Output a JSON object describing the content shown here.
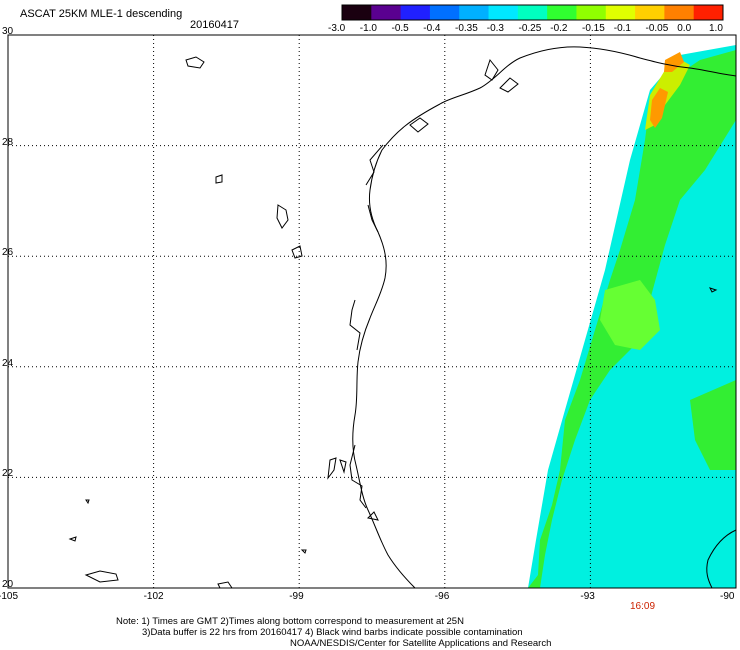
{
  "header": {
    "title": "ASCAT 25KM MLE-1 descending",
    "date": "20160417"
  },
  "colorbar": {
    "labels": [
      "-3.0",
      "-1.0",
      "-0.5",
      "-0.4",
      "-0.35",
      "-0.3",
      "-0.25",
      "-0.2",
      "-0.15",
      "-0.1",
      "-0.05",
      "0.0",
      "1.0"
    ],
    "colors": [
      "#1a0010",
      "#5a0090",
      "#2020ff",
      "#0070ff",
      "#00b0ff",
      "#00e8ff",
      "#00ffc0",
      "#30ff30",
      "#90ff00",
      "#e0ff00",
      "#ffd000",
      "#ff8000",
      "#ff2000"
    ]
  },
  "map": {
    "lon_ticks": [
      "-105",
      "-102",
      "-99",
      "-96",
      "-93",
      "-90"
    ],
    "lat_ticks": [
      "30",
      "28",
      "26",
      "24",
      "22",
      "20"
    ],
    "pass_time": "16:09",
    "pass_time_color": "#cc2200",
    "swath_colors": {
      "cyan": "#00f0e0",
      "aqua": "#10ffd0",
      "green": "#33ee33",
      "lime": "#66ff33",
      "yellow": "#ccee00",
      "orange": "#ff9900"
    }
  },
  "footer": {
    "line1": "Note: 1) Times are GMT 2)Times along bottom correspond to measurement at 25N",
    "line2": "3)Data buffer is 22 hrs from 20160417 4) Black wind barbs indicate possible contamination",
    "line3": "NOAA/NESDIS/Center for Satellite Applications and Research"
  }
}
